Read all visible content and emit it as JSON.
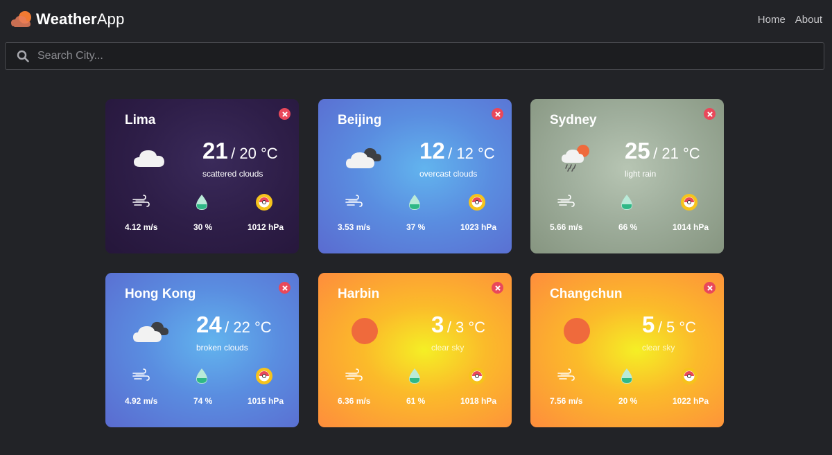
{
  "app": {
    "name_bold": "Weather",
    "name_light": "App"
  },
  "nav": [
    {
      "label": "Home"
    },
    {
      "label": "About"
    }
  ],
  "search": {
    "placeholder": "Search City...",
    "value": ""
  },
  "cards": [
    {
      "city": "Lima",
      "temp": "21",
      "feels": "/ 20 °C",
      "description": "scattered clouds",
      "wind": "4.12 m/s",
      "humidity": "30 %",
      "pressure": "1012 hPa",
      "icon": "cloud-icon"
    },
    {
      "city": "Beijing",
      "temp": "12",
      "feels": "/ 12 °C",
      "description": "overcast clouds",
      "wind": "3.53 m/s",
      "humidity": "37 %",
      "pressure": "1023 hPa",
      "icon": "overcast-clouds-icon"
    },
    {
      "city": "Sydney",
      "temp": "25",
      "feels": "/ 21 °C",
      "description": "light rain",
      "wind": "5.66 m/s",
      "humidity": "66 %",
      "pressure": "1014 hPa",
      "icon": "sun-rain-cloud-icon"
    },
    {
      "city": "Hong Kong",
      "temp": "24",
      "feels": "/ 22 °C",
      "description": "broken clouds",
      "wind": "4.92 m/s",
      "humidity": "74 %",
      "pressure": "1015 hPa",
      "icon": "broken-clouds-icon"
    },
    {
      "city": "Harbin",
      "temp": "3",
      "feels": "/ 3 °C",
      "description": "clear sky",
      "wind": "6.36 m/s",
      "humidity": "61 %",
      "pressure": "1018 hPa",
      "icon": "sun-icon"
    },
    {
      "city": "Changchun",
      "temp": "5",
      "feels": "/ 5 °C",
      "description": "clear sky",
      "wind": "7.56 m/s",
      "humidity": "20 %",
      "pressure": "1022 hPa",
      "icon": "sun-icon"
    }
  ],
  "colors": {
    "background": "#222327",
    "close": "#e9485a",
    "humidity_drop": "#2fb886",
    "pressure_ring": "#f6c31c",
    "sun": "#ef6a3c"
  }
}
